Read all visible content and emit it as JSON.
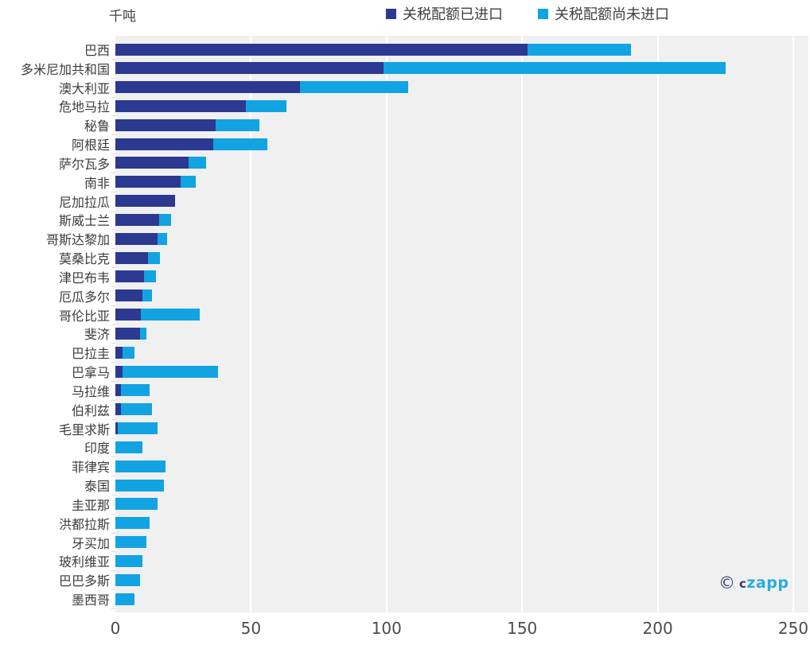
{
  "chart_data": {
    "type": "bar",
    "orientation": "horizontal",
    "stacked": true,
    "unit_label": "千吨",
    "categories": [
      "巴西",
      "多米尼加共和国",
      "澳大利亚",
      "危地马拉",
      "秘鲁",
      "阿根廷",
      "萨尔瓦多",
      "南非",
      "尼加拉瓜",
      "斯威士兰",
      "哥斯达黎加",
      "莫桑比克",
      "津巴布韦",
      "厄瓜多尔",
      "哥伦比亚",
      "斐济",
      "巴拉圭",
      "巴拿马",
      "马拉维",
      "伯利兹",
      "毛里求斯",
      "印度",
      "菲律宾",
      "泰国",
      "圭亚那",
      "洪都拉斯",
      "牙买加",
      "玻利维亚",
      "巴巴多斯",
      "墨西哥"
    ],
    "series": [
      {
        "name": "关税配额已进口",
        "color": "#2b3991",
        "values": [
          152,
          99,
          68,
          48,
          37,
          36,
          27,
          24,
          22,
          16,
          15.5,
          12,
          10.5,
          10,
          9.5,
          9,
          2.5,
          2.5,
          2,
          2,
          1,
          0,
          0,
          0,
          0,
          0,
          0,
          0,
          0,
          0
        ]
      },
      {
        "name": "关税配额尚未进口",
        "color": "#12a3e2",
        "values": [
          38,
          126,
          40,
          15,
          16,
          20,
          6.5,
          5.5,
          0,
          4.5,
          3.5,
          4.5,
          4.5,
          3.5,
          21.5,
          2.5,
          4.5,
          35.5,
          10.5,
          11.5,
          14.5,
          10,
          18.5,
          18,
          15.5,
          12.5,
          11.5,
          10,
          9,
          7
        ]
      }
    ],
    "xlim": [
      0,
      250
    ],
    "x_ticks": [
      0,
      50,
      100,
      150,
      200,
      250
    ],
    "grid": true,
    "legend_position": "top",
    "plot_background": "#f0f0f1",
    "gridline_color": "#ffffff"
  },
  "watermark": {
    "copyright_symbol": "©",
    "brand_prefix": "c",
    "brand_main": "zapp"
  }
}
